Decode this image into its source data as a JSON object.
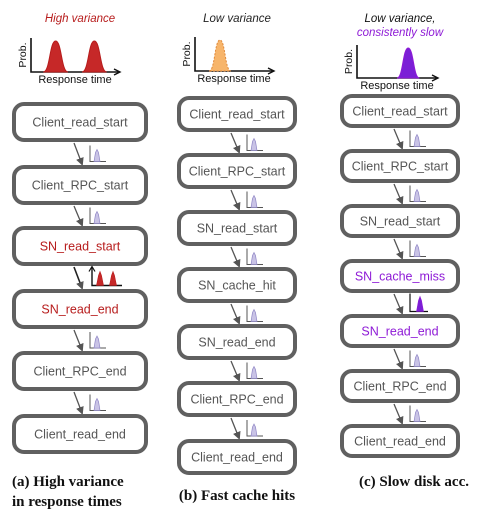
{
  "colors": {
    "node_border": "#606060",
    "node_text_normal": "#555555",
    "red": "#b71c1c",
    "red_fill": "#c62828",
    "purple": "#8e1ad6",
    "purple_fill": "#7b1fd6",
    "orange_fill": "#f7b56b",
    "orange_stroke": "#e0893a",
    "mini_hist_fill": "#c9c3e6",
    "mini_hist_stroke": "#8f86c4",
    "arrow": "#555555"
  },
  "axes_labels": {
    "y": "Prob.",
    "x": "Response time"
  },
  "panels": [
    {
      "id": "a",
      "header": [
        "High variance"
      ],
      "header_color": "red",
      "dist_shape": "bimodal",
      "dist_color": "red",
      "caption": [
        "(a)  High  variance",
        "in response times"
      ],
      "nodes": [
        {
          "label": "Client_read_start",
          "style": "normal"
        },
        {
          "label": "Client_RPC_start",
          "style": "normal"
        },
        {
          "label": "SN_read_start",
          "style": "red"
        },
        {
          "label": "SN_read_end",
          "style": "red"
        },
        {
          "label": "Client_RPC_end",
          "style": "normal"
        },
        {
          "label": "Client_read_end",
          "style": "normal"
        }
      ],
      "edge_hists": [
        "small",
        "small",
        "red-bimodal",
        "small",
        "small"
      ]
    },
    {
      "id": "b",
      "header": [
        "Low variance"
      ],
      "header_color": "black",
      "dist_shape": "single-left",
      "dist_color": "orange",
      "caption": [
        "(b) Fast cache hits"
      ],
      "nodes": [
        {
          "label": "Client_read_start",
          "style": "normal"
        },
        {
          "label": "Client_RPC_start",
          "style": "normal"
        },
        {
          "label": "SN_read_start",
          "style": "normal"
        },
        {
          "label": "SN_cache_hit",
          "style": "normal"
        },
        {
          "label": "SN_read_end",
          "style": "normal"
        },
        {
          "label": "Client_RPC_end",
          "style": "normal"
        },
        {
          "label": "Client_read_end",
          "style": "normal"
        }
      ],
      "edge_hists": [
        "small",
        "small",
        "small",
        "small",
        "small",
        "small"
      ]
    },
    {
      "id": "c",
      "header": [
        "Low variance,",
        "consistently slow"
      ],
      "header_color": "purple",
      "dist_shape": "single-right",
      "dist_color": "purple",
      "caption": [
        "(c) Slow disk acc."
      ],
      "nodes": [
        {
          "label": "Client_read_start",
          "style": "normal"
        },
        {
          "label": "Client_RPC_start",
          "style": "normal"
        },
        {
          "label": "SN_read_start",
          "style": "normal"
        },
        {
          "label": "SN_cache_miss",
          "style": "purple"
        },
        {
          "label": "SN_read_end",
          "style": "purple"
        },
        {
          "label": "Client_RPC_end",
          "style": "normal"
        },
        {
          "label": "Client_read_end",
          "style": "normal"
        }
      ],
      "edge_hists": [
        "small",
        "small",
        "small",
        "purple-tall",
        "small",
        "small"
      ]
    }
  ]
}
